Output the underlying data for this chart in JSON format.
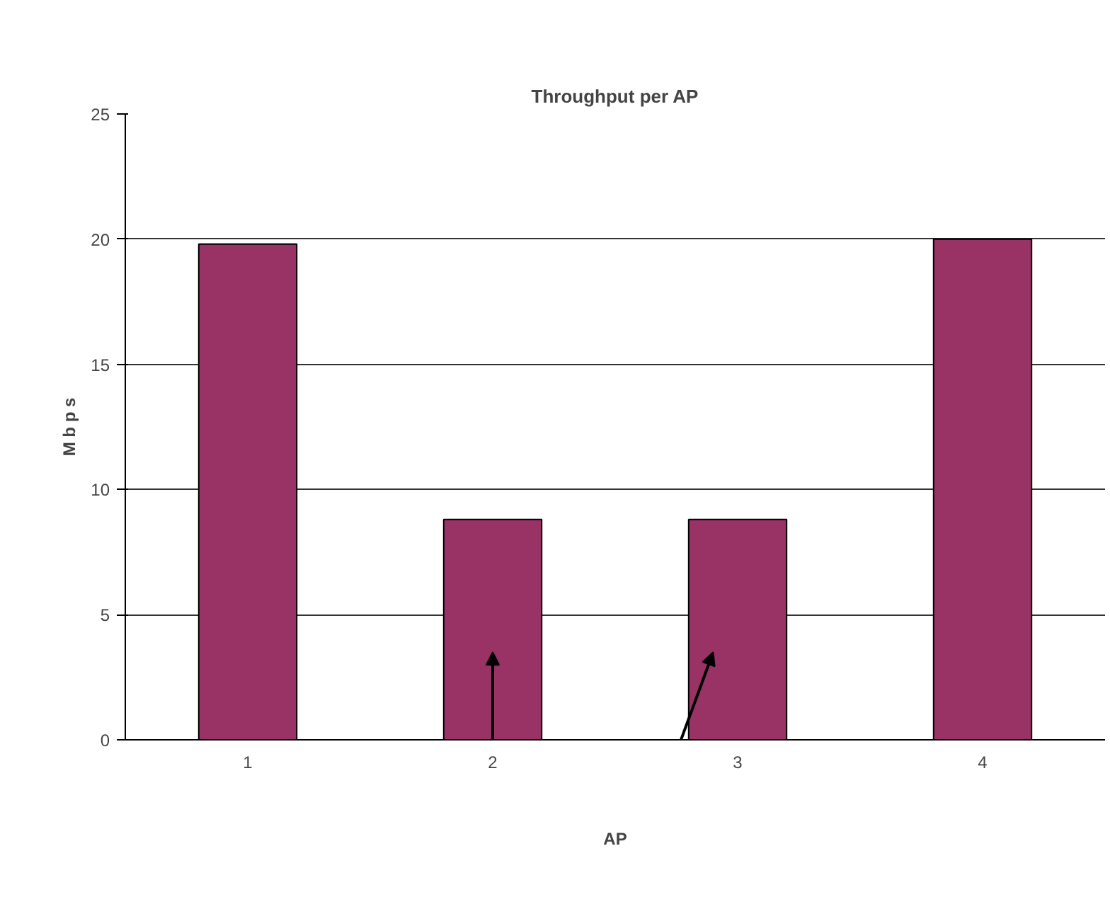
{
  "chart_data": {
    "type": "bar",
    "title": "Throughput per AP",
    "xlabel": "AP",
    "ylabel": "M b p s",
    "categories": [
      "1",
      "2",
      "3",
      "4"
    ],
    "values": [
      19.8,
      8.8,
      8.8,
      20.0
    ],
    "color": "#993366",
    "ylim": [
      0,
      25
    ],
    "yticks": [
      0,
      5,
      10,
      15,
      20,
      25
    ],
    "grid": "y"
  }
}
